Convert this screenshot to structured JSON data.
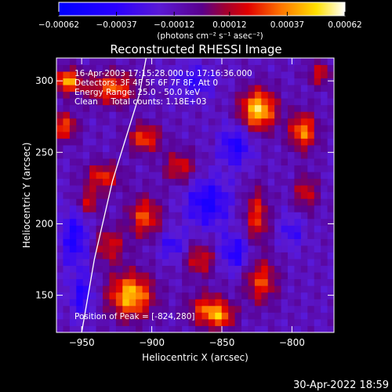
{
  "chart_data": {
    "type": "heatmap",
    "title": "Reconstructed RHESSI Image",
    "xlabel": "Heliocentric X (arcsec)",
    "ylabel": "Heliocentric Y (arcsec)",
    "xlim": [
      -968,
      -770
    ],
    "ylim": [
      124,
      316
    ],
    "x_ticks": [
      -950,
      -900,
      -850,
      -800
    ],
    "y_ticks": [
      150,
      200,
      250,
      300
    ],
    "x_tick_labels": [
      "−950",
      "−900",
      "−850",
      "−800"
    ],
    "y_tick_labels": [
      "150",
      "200",
      "250",
      "300"
    ],
    "colorbar": {
      "vmin": -0.00062,
      "vmax": 0.00062,
      "ticks": [
        -0.00062,
        -0.00037,
        -0.00012,
        0.00012,
        0.00037,
        0.00062
      ],
      "tick_labels": [
        "−0.00062",
        "−0.00037",
        "−0.00012",
        "0.00012",
        "0.00037",
        "0.00062"
      ],
      "units_label": "(photons cm⁻² s⁻¹ asec⁻²)",
      "colormap": "blue-purple-red-orange-yellow-white"
    },
    "annotations": {
      "time_range": "16-Apr-2003 17:15:28.000 to 17:16:36.000",
      "detectors": "Detectors: 3F 4F 5F 6F 7F 8F, Att 0",
      "energy": "Energy Range: 25.0 - 50.0 keV",
      "method": "Clean     Total counts: 1.18E+03",
      "position": "Position of Peak = [-824,280]"
    },
    "limb_color": "#ffffff",
    "grid": false,
    "pixel_grid": [
      42,
      41
    ],
    "blobs": [
      {
        "x": -960,
        "y": 300,
        "amp": 0.00052,
        "sx": 7,
        "sy": 6
      },
      {
        "x": -962,
        "y": 268,
        "amp": 0.0004,
        "sx": 6,
        "sy": 7
      },
      {
        "x": -928,
        "y": 295,
        "amp": 0.00042,
        "sx": 12,
        "sy": 8
      },
      {
        "x": -905,
        "y": 260,
        "amp": 0.0004,
        "sx": 8,
        "sy": 7
      },
      {
        "x": -935,
        "y": 233,
        "amp": 0.00036,
        "sx": 9,
        "sy": 7
      },
      {
        "x": -880,
        "y": 240,
        "amp": 0.00032,
        "sx": 8,
        "sy": 8
      },
      {
        "x": -905,
        "y": 205,
        "amp": 0.0004,
        "sx": 8,
        "sy": 10
      },
      {
        "x": -930,
        "y": 185,
        "amp": 0.0003,
        "sx": 8,
        "sy": 9
      },
      {
        "x": -915,
        "y": 150,
        "amp": 0.00058,
        "sx": 11,
        "sy": 11
      },
      {
        "x": -865,
        "y": 175,
        "amp": 0.00032,
        "sx": 8,
        "sy": 8
      },
      {
        "x": -860,
        "y": 140,
        "amp": 0.0004,
        "sx": 10,
        "sy": 8
      },
      {
        "x": -822,
        "y": 160,
        "amp": 0.00038,
        "sx": 8,
        "sy": 11
      },
      {
        "x": -824,
        "y": 280,
        "amp": 0.00062,
        "sx": 9,
        "sy": 10
      },
      {
        "x": -792,
        "y": 265,
        "amp": 0.00048,
        "sx": 7,
        "sy": 9
      },
      {
        "x": -825,
        "y": 205,
        "amp": 0.00036,
        "sx": 6,
        "sy": 14
      },
      {
        "x": -790,
        "y": 222,
        "amp": 0.0003,
        "sx": 6,
        "sy": 9
      },
      {
        "x": -780,
        "y": 305,
        "amp": 0.0003,
        "sx": 6,
        "sy": 6
      },
      {
        "x": -850,
        "y": 135,
        "amp": 0.0003,
        "sx": 7,
        "sy": 6
      },
      {
        "x": -945,
        "y": 215,
        "amp": 0.0003,
        "sx": 6,
        "sy": 6
      },
      {
        "x": -870,
        "y": 300,
        "amp": -0.00022,
        "sx": 10,
        "sy": 8
      },
      {
        "x": -840,
        "y": 255,
        "amp": -0.0003,
        "sx": 8,
        "sy": 10
      },
      {
        "x": -860,
        "y": 215,
        "amp": -0.00032,
        "sx": 11,
        "sy": 12
      },
      {
        "x": -840,
        "y": 180,
        "amp": -0.00028,
        "sx": 9,
        "sy": 9
      },
      {
        "x": -955,
        "y": 190,
        "amp": -0.0003,
        "sx": 7,
        "sy": 14
      },
      {
        "x": -950,
        "y": 150,
        "amp": -0.00026,
        "sx": 6,
        "sy": 10
      },
      {
        "x": -885,
        "y": 185,
        "amp": -0.00022,
        "sx": 7,
        "sy": 7
      },
      {
        "x": -800,
        "y": 195,
        "amp": -0.0002,
        "sx": 6,
        "sy": 8
      }
    ],
    "limb_points": [
      [
        -950,
        124
      ],
      [
        -941,
        175
      ],
      [
        -928,
        230
      ],
      [
        -909,
        290
      ],
      [
        -904,
        316
      ]
    ]
  },
  "footer": {
    "datetime": "30-Apr-2022 18:59"
  }
}
